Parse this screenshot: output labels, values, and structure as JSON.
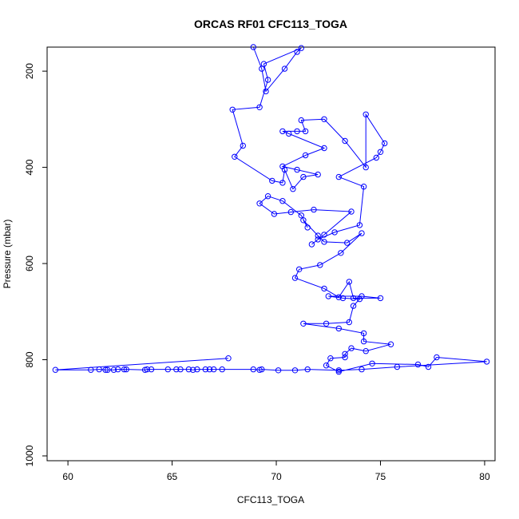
{
  "chart_data": {
    "type": "line",
    "title": "ORCAS RF01 CFC113_TOGA",
    "xlabel": "CFC113_TOGA",
    "ylabel": "Pressure (mbar)",
    "xlim": [
      59,
      80.5
    ],
    "ylim": [
      1010,
      150
    ],
    "y_reversed": true,
    "xticks": [
      60,
      65,
      70,
      75,
      80
    ],
    "yticks": [
      200,
      400,
      600,
      800,
      1000
    ],
    "grid": false,
    "series": [
      {
        "color": "#0000ff",
        "marker": "open-circle",
        "points": [
          [
            68.9,
            150
          ],
          [
            69.3,
            195
          ],
          [
            69.5,
            242
          ],
          [
            70.4,
            195
          ],
          [
            71.0,
            160
          ],
          [
            71.2,
            152
          ],
          [
            69.4,
            185
          ],
          [
            69.6,
            218
          ],
          [
            69.2,
            275
          ],
          [
            67.9,
            280
          ],
          [
            68.4,
            355
          ],
          [
            68.0,
            378
          ],
          [
            69.8,
            428
          ],
          [
            70.3,
            432
          ],
          [
            70.4,
            405
          ],
          [
            70.8,
            445
          ],
          [
            71.3,
            420
          ],
          [
            72.0,
            415
          ],
          [
            71.0,
            405
          ],
          [
            70.3,
            398
          ],
          [
            71.4,
            375
          ],
          [
            72.3,
            360
          ],
          [
            70.6,
            330
          ],
          [
            70.3,
            325
          ],
          [
            71.0,
            325
          ],
          [
            71.4,
            325
          ],
          [
            71.2,
            302
          ],
          [
            72.3,
            300
          ],
          [
            73.3,
            345
          ],
          [
            74.3,
            400
          ],
          [
            74.3,
            290
          ],
          [
            75.2,
            350
          ],
          [
            75.0,
            368
          ],
          [
            74.8,
            380
          ],
          [
            73.0,
            420
          ],
          [
            74.2,
            440
          ],
          [
            74.0,
            520
          ],
          [
            72.8,
            535
          ],
          [
            72.0,
            550
          ],
          [
            71.7,
            560
          ],
          [
            72.3,
            540
          ],
          [
            73.6,
            492
          ],
          [
            71.8,
            488
          ],
          [
            70.7,
            493
          ],
          [
            69.9,
            497
          ],
          [
            69.2,
            475
          ],
          [
            69.6,
            460
          ],
          [
            70.3,
            470
          ],
          [
            71.2,
            500
          ],
          [
            71.5,
            525
          ],
          [
            71.3,
            510
          ],
          [
            72.0,
            542
          ],
          [
            72.3,
            555
          ],
          [
            73.4,
            557
          ],
          [
            74.1,
            537
          ],
          [
            73.1,
            578
          ],
          [
            72.1,
            603
          ],
          [
            71.1,
            612
          ],
          [
            70.9,
            630
          ],
          [
            72.3,
            652
          ],
          [
            73.0,
            670
          ],
          [
            73.5,
            638
          ],
          [
            73.7,
            672
          ],
          [
            75.0,
            672
          ],
          [
            74.1,
            668
          ],
          [
            72.5,
            668
          ],
          [
            73.2,
            672
          ],
          [
            74.0,
            674
          ],
          [
            73.7,
            688
          ],
          [
            73.5,
            722
          ],
          [
            72.4,
            725
          ],
          [
            71.3,
            725
          ],
          [
            73.0,
            735
          ],
          [
            74.2,
            745
          ],
          [
            74.2,
            762
          ],
          [
            75.5,
            768
          ],
          [
            74.3,
            782
          ],
          [
            73.6,
            776
          ],
          [
            73.3,
            788
          ],
          [
            73.3,
            795
          ],
          [
            72.6,
            797
          ],
          [
            72.4,
            812
          ],
          [
            73.0,
            825
          ],
          [
            74.6,
            808
          ],
          [
            76.8,
            810
          ],
          [
            77.3,
            815
          ],
          [
            77.7,
            795
          ],
          [
            80.1,
            804
          ],
          [
            75.8,
            815
          ],
          [
            74.1,
            820
          ],
          [
            73.0,
            822
          ],
          [
            71.5,
            820
          ],
          [
            70.9,
            822
          ],
          [
            70.1,
            822
          ],
          [
            69.3,
            820
          ],
          [
            69.2,
            821
          ],
          [
            68.9,
            820
          ],
          [
            67.4,
            820
          ],
          [
            67.0,
            820
          ],
          [
            66.8,
            820
          ],
          [
            66.6,
            820
          ],
          [
            66.2,
            820
          ],
          [
            66.0,
            821
          ],
          [
            65.8,
            820
          ],
          [
            65.4,
            820
          ],
          [
            65.2,
            820
          ],
          [
            64.8,
            820
          ],
          [
            64.0,
            820
          ],
          [
            63.8,
            820
          ],
          [
            63.7,
            821
          ],
          [
            62.8,
            820
          ],
          [
            62.7,
            820
          ],
          [
            62.4,
            820
          ],
          [
            62.2,
            821
          ],
          [
            61.9,
            821
          ],
          [
            61.8,
            821
          ],
          [
            61.5,
            820
          ],
          [
            61.1,
            821
          ],
          [
            59.4,
            821
          ],
          [
            67.7,
            797
          ]
        ]
      }
    ]
  }
}
